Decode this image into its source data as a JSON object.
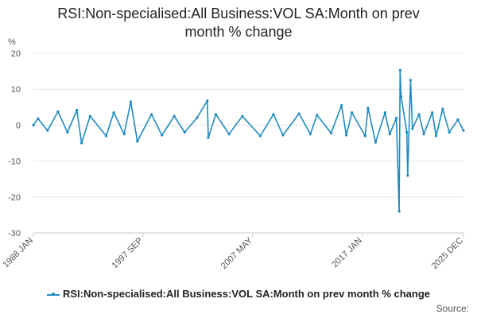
{
  "chart_data": {
    "type": "line",
    "title_lines": [
      "RSI:Non-specialised:All Business:VOL SA:Month on prev",
      "month % change"
    ],
    "ylabel": "%",
    "xlabel": "",
    "ylim": [
      -30,
      20
    ],
    "yticks": [
      20,
      10,
      0,
      -10,
      -20,
      -30
    ],
    "x_range": [
      "1988 JAN",
      "2025 DEC"
    ],
    "xticks": [
      "1988 JAN",
      "1997 SEP",
      "2007 MAY",
      "2017 JAN",
      "2025 DEC"
    ],
    "grid": true,
    "legend_position": "bottom",
    "series": [
      {
        "name": "RSI:Non-specialised:All Business:VOL SA:Month on prev month % change",
        "color": "#1f8ac0",
        "points": [
          [
            "1988 JAN",
            0.0
          ],
          [
            "1988 JUN",
            1.8
          ],
          [
            "1989 APR",
            -1.5
          ],
          [
            "1990 MAR",
            3.8
          ],
          [
            "1991 JAN",
            -2.0
          ],
          [
            "1991 NOV",
            4.2
          ],
          [
            "1992 APR",
            -5.0
          ],
          [
            "1993 JAN",
            2.5
          ],
          [
            "1994 JUN",
            -3.0
          ],
          [
            "1995 FEB",
            3.5
          ],
          [
            "1996 JAN",
            -2.5
          ],
          [
            "1996 AUG",
            6.5
          ],
          [
            "1997 MAR",
            -4.5
          ],
          [
            "1998 JUN",
            3.0
          ],
          [
            "1999 MAY",
            -2.8
          ],
          [
            "2000 JUN",
            2.5
          ],
          [
            "2001 MAY",
            -2.0
          ],
          [
            "2002 JUN",
            2.0
          ],
          [
            "2003 MAY",
            6.8
          ],
          [
            "2003 JUN",
            -3.5
          ],
          [
            "2004 FEB",
            3.0
          ],
          [
            "2005 APR",
            -2.5
          ],
          [
            "2006 JUN",
            2.5
          ],
          [
            "2008 JAN",
            -3.0
          ],
          [
            "2009 MAR",
            3.0
          ],
          [
            "2010 JAN",
            -2.8
          ],
          [
            "2011 JUN",
            3.2
          ],
          [
            "2012 JUN",
            -2.5
          ],
          [
            "2013 JAN",
            2.8
          ],
          [
            "2014 APR",
            -2.2
          ],
          [
            "2015 MAR",
            5.5
          ],
          [
            "2015 AUG",
            -2.8
          ],
          [
            "2016 FEB",
            3.5
          ],
          [
            "2017 APR",
            -3.0
          ],
          [
            "2017 JUL",
            4.8
          ],
          [
            "2018 MAR",
            -4.8
          ],
          [
            "2019 JAN",
            3.5
          ],
          [
            "2019 JUN",
            -2.5
          ],
          [
            "2020 JAN",
            2.0
          ],
          [
            "2020 APR",
            -24.0
          ],
          [
            "2020 MAY",
            15.3
          ],
          [
            "2020 JUN",
            8.0
          ],
          [
            "2020 DEC",
            -2.0
          ],
          [
            "2021 JAN",
            -14.0
          ],
          [
            "2021 APR",
            12.5
          ],
          [
            "2021 JUN",
            -1.0
          ],
          [
            "2022 JAN",
            3.0
          ],
          [
            "2022 JUN",
            -2.5
          ],
          [
            "2023 MAR",
            3.5
          ],
          [
            "2023 JUL",
            -3.0
          ],
          [
            "2024 FEB",
            4.5
          ],
          [
            "2024 SEP",
            -2.0
          ],
          [
            "2025 JUN",
            1.5
          ],
          [
            "2025 DEC",
            -1.5
          ]
        ]
      }
    ]
  },
  "legend": {
    "label": "RSI:Non-specialised:All Business:VOL SA:Month on prev month % change"
  },
  "source": {
    "label": "Source:"
  }
}
